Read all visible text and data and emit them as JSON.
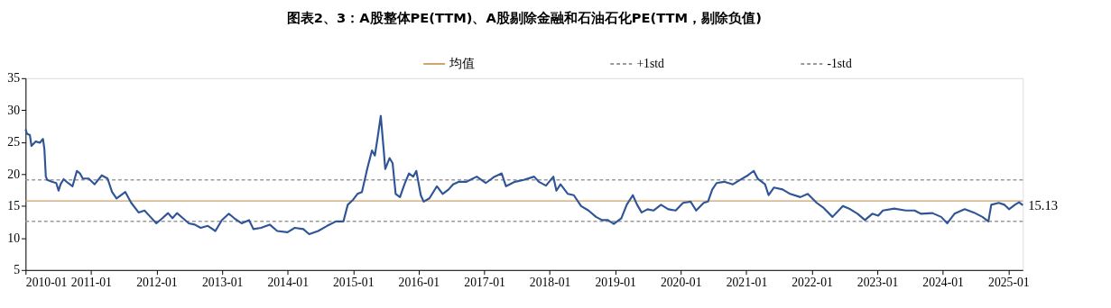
{
  "chart_data": {
    "type": "line",
    "title": "图表2、3：A股整体PE(TTM)、A股剔除金融和石油石化PE(TTM，剔除负值)",
    "xlim": [
      "2010-01-01",
      "2025-03-22"
    ],
    "xticks": [
      "2010-01",
      "2011-01",
      "2012-01",
      "2013-01",
      "2014-01",
      "2015-01",
      "2016-01",
      "2017-01",
      "2018-01",
      "2019-01",
      "2020-01",
      "2021-01",
      "2022-01",
      "2023-01",
      "2024-01",
      "2025-01"
    ],
    "ylim": [
      5,
      35
    ],
    "yticks": [
      5,
      10,
      15,
      20,
      25,
      30,
      35
    ],
    "grid": false,
    "legend": "top",
    "marker": "none",
    "line_style": "solid",
    "series": [
      {
        "color": "#2f5597",
        "x": [
          "2010-01-01",
          "2010-01-09",
          "2010-01-25",
          "2010-02-03",
          "2010-02-27",
          "2010-03-22",
          "2010-04-08",
          "2010-04-16",
          "2010-04-24",
          "2010-05-02",
          "2010-05-27",
          "2010-06-21",
          "2010-07-04",
          "2010-07-15",
          "2010-08-01",
          "2010-08-26",
          "2010-09-20",
          "2010-10-14",
          "2010-10-31",
          "2010-11-16",
          "2010-12-19",
          "2011-01-21",
          "2011-03-02",
          "2011-04-03",
          "2011-04-28",
          "2011-05-23",
          "2011-07-11",
          "2011-08-13",
          "2011-09-23",
          "2011-10-26",
          "2011-11-28",
          "2011-12-31",
          "2012-02-03",
          "2012-03-05",
          "2012-03-30",
          "2012-04-24",
          "2012-05-27",
          "2012-06-29",
          "2012-08-01",
          "2012-09-03",
          "2012-10-13",
          "2012-11-24",
          "2012-12-30",
          "2013-02-07",
          "2013-03-09",
          "2013-04-19",
          "2013-05-31",
          "2013-06-24",
          "2013-08-05",
          "2013-09-23",
          "2013-11-04",
          "2013-12-31",
          "2014-02-10",
          "2014-03-29",
          "2014-05-01",
          "2014-06-20",
          "2014-08-09",
          "2014-09-27",
          "2014-11-08",
          "2014-12-02",
          "2015-01-01",
          "2015-01-25",
          "2015-02-19",
          "2015-03-22",
          "2015-04-16",
          "2015-05-02",
          "2015-05-18",
          "2015-06-04",
          "2015-06-20",
          "2015-06-29",
          "2015-07-23",
          "2015-08-09",
          "2015-08-26",
          "2015-09-19",
          "2015-10-14",
          "2015-11-08",
          "2015-12-02",
          "2015-12-19",
          "2016-01-13",
          "2016-01-29",
          "2016-03-01",
          "2016-04-12",
          "2016-05-14",
          "2016-06-16",
          "2016-07-11",
          "2016-08-13",
          "2016-09-24",
          "2016-11-20",
          "2017-01-09",
          "2017-02-27",
          "2017-04-08",
          "2017-05-02",
          "2017-06-21",
          "2017-08-09",
          "2017-10-06",
          "2017-11-01",
          "2017-12-11",
          "2018-01-21",
          "2018-02-07",
          "2018-03-02",
          "2018-04-12",
          "2018-05-15",
          "2018-06-25",
          "2018-08-05",
          "2018-09-16",
          "2018-10-19",
          "2018-11-21",
          "2018-12-24",
          "2019-02-04",
          "2019-03-06",
          "2019-04-09",
          "2019-05-03",
          "2019-05-28",
          "2019-06-30",
          "2019-08-02",
          "2019-09-13",
          "2019-10-24",
          "2019-12-04",
          "2020-01-14",
          "2020-02-25",
          "2020-03-27",
          "2020-05-08",
          "2020-06-01",
          "2020-06-25",
          "2020-07-19",
          "2020-08-30",
          "2020-10-18",
          "2020-11-28",
          "2021-01-09",
          "2021-02-11",
          "2021-03-05",
          "2021-04-15",
          "2021-05-05",
          "2021-06-04",
          "2021-07-22",
          "2021-09-02",
          "2021-10-29",
          "2021-12-09",
          "2022-01-28",
          "2022-03-08",
          "2022-04-26",
          "2022-06-23",
          "2022-08-03",
          "2022-09-13",
          "2022-10-24",
          "2022-12-04",
          "2023-01-06",
          "2023-02-01",
          "2023-04-05",
          "2023-06-09",
          "2023-07-28",
          "2023-08-31",
          "2023-11-04",
          "2023-12-23",
          "2024-01-26",
          "2024-03-06",
          "2024-05-02",
          "2024-06-21",
          "2024-08-09",
          "2024-09-11",
          "2024-09-27",
          "2024-11-08",
          "2024-12-10",
          "2025-01-04",
          "2025-02-06",
          "2025-03-01",
          "2025-03-22"
        ],
        "values": [
          27.0,
          26.3,
          26.1,
          24.4,
          25.1,
          24.9,
          25.5,
          23.9,
          19.6,
          19.1,
          18.8,
          18.6,
          17.4,
          18.4,
          19.2,
          18.6,
          18.1,
          20.5,
          20.1,
          19.3,
          19.3,
          18.4,
          19.8,
          19.3,
          17.2,
          16.2,
          17.2,
          15.5,
          14.0,
          14.3,
          13.3,
          12.3,
          13.1,
          13.9,
          13.1,
          13.9,
          13.1,
          12.3,
          12.1,
          11.6,
          11.9,
          11.1,
          12.8,
          13.8,
          13.1,
          12.3,
          12.8,
          11.4,
          11.6,
          12.1,
          11.1,
          10.9,
          11.6,
          11.4,
          10.6,
          11.1,
          11.9,
          12.6,
          12.6,
          15.2,
          16.0,
          16.9,
          17.2,
          21.0,
          23.7,
          22.9,
          25.8,
          29.1,
          23.9,
          20.8,
          22.5,
          21.7,
          16.9,
          16.4,
          18.4,
          20.1,
          19.6,
          20.5,
          16.7,
          15.7,
          16.2,
          18.1,
          16.9,
          17.6,
          18.4,
          18.8,
          18.8,
          19.6,
          18.6,
          19.6,
          20.1,
          18.1,
          18.8,
          19.1,
          19.6,
          18.8,
          18.2,
          19.6,
          17.4,
          18.4,
          16.9,
          16.7,
          15.0,
          14.3,
          13.3,
          12.8,
          12.8,
          12.2,
          13.1,
          15.2,
          16.7,
          15.2,
          14.0,
          14.5,
          14.3,
          15.2,
          14.5,
          14.3,
          15.5,
          15.7,
          14.3,
          15.5,
          15.7,
          17.6,
          18.6,
          18.8,
          18.4,
          19.1,
          19.8,
          20.5,
          19.3,
          18.4,
          16.7,
          17.9,
          17.6,
          16.9,
          16.4,
          16.9,
          15.5,
          14.7,
          13.3,
          15.0,
          14.5,
          13.8,
          12.8,
          13.8,
          13.5,
          14.3,
          14.6,
          14.3,
          14.3,
          13.8,
          13.9,
          13.3,
          12.3,
          13.8,
          14.5,
          14.0,
          13.3,
          12.6,
          15.2,
          15.5,
          15.2,
          14.5,
          15.2,
          15.6,
          15.13
        ]
      }
    ],
    "ref_lines": [
      {
        "axis": "y",
        "value": 15.8,
        "label": "均值",
        "color": "#c9a26b",
        "line_style": "solid"
      },
      {
        "axis": "y",
        "value": 19.1,
        "label": "+1std",
        "color": "#9a9a9a",
        "line_style": "dashed"
      },
      {
        "axis": "y",
        "value": 12.6,
        "label": "-1std",
        "color": "#9a9a9a",
        "line_style": "dashed"
      }
    ],
    "annotations": [
      {
        "text": "15.13",
        "x": "2025-03-22",
        "y": 15.13
      }
    ]
  }
}
